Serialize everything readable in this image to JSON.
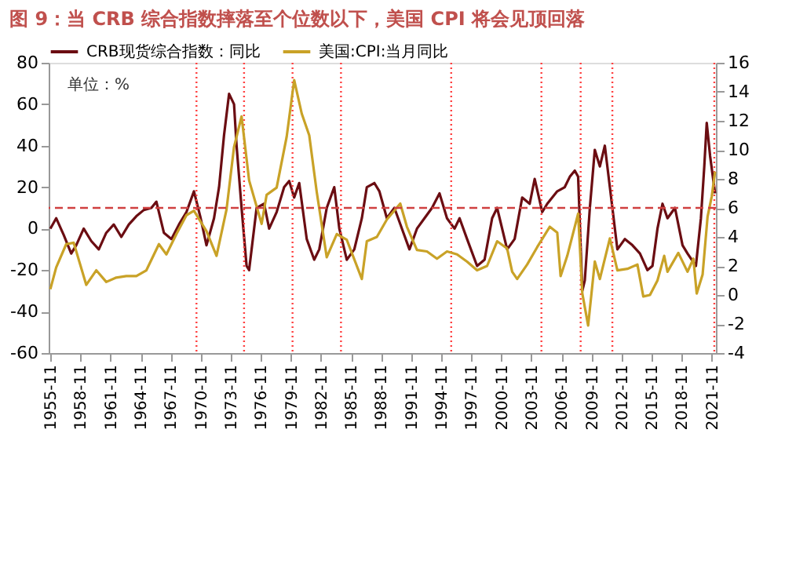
{
  "chart_data": {
    "type": "line",
    "title": "图 9：当 CRB 综合指数摔落至个位数以下，美国 CPI 将会见顶回落",
    "annotations": [
      "单位：%"
    ],
    "series": [
      {
        "name": "CRB现货综合指数：同比",
        "color": "#6b0d12",
        "x": [
          "1955-11",
          "1956-06",
          "1957-03",
          "1957-12",
          "1958-06",
          "1959-03",
          "1959-12",
          "1960-09",
          "1961-06",
          "1962-03",
          "1962-12",
          "1963-09",
          "1964-06",
          "1965-03",
          "1965-12",
          "1966-06",
          "1967-03",
          "1967-12",
          "1968-09",
          "1969-06",
          "1970-03",
          "1970-11",
          "1971-06",
          "1972-03",
          "1972-09",
          "1973-03",
          "1973-09",
          "1974-03",
          "1974-06",
          "1974-12",
          "1975-06",
          "1975-09",
          "1976-06",
          "1977-03",
          "1977-09",
          "1978-06",
          "1979-03",
          "1979-09",
          "1980-03",
          "1980-09",
          "1981-06",
          "1982-03",
          "1982-09",
          "1983-06",
          "1984-03",
          "1984-09",
          "1985-06",
          "1986-03",
          "1986-12",
          "1987-06",
          "1988-03",
          "1988-09",
          "1989-06",
          "1990-03",
          "1990-12",
          "1991-09",
          "1992-06",
          "1993-03",
          "1993-12",
          "1994-09",
          "1995-06",
          "1996-03",
          "1996-09",
          "1997-06",
          "1998-06",
          "1999-03",
          "1999-12",
          "2000-06",
          "2001-06",
          "2002-03",
          "2002-12",
          "2003-09",
          "2004-03",
          "2004-12",
          "2005-06",
          "2006-06",
          "2007-03",
          "2007-09",
          "2008-03",
          "2008-07",
          "2008-12",
          "2009-03",
          "2009-09",
          "2010-03",
          "2010-09",
          "2011-03",
          "2011-09",
          "2012-06",
          "2013-03",
          "2013-12",
          "2014-09",
          "2015-06",
          "2015-12",
          "2016-06",
          "2016-12",
          "2017-06",
          "2018-03",
          "2018-12",
          "2019-06",
          "2020-04",
          "2020-10",
          "2021-02",
          "2021-05",
          "2021-09",
          "2022-03"
        ],
        "values": [
          0,
          5,
          -3,
          -12,
          -8,
          0,
          -6,
          -10,
          -2,
          2,
          -4,
          2,
          6,
          9,
          10,
          13,
          -2,
          -5,
          2,
          8,
          18,
          5,
          -8,
          5,
          20,
          45,
          65,
          60,
          40,
          10,
          -18,
          -20,
          10,
          12,
          0,
          8,
          20,
          23,
          15,
          22,
          -5,
          -15,
          -10,
          10,
          20,
          0,
          -15,
          -10,
          5,
          20,
          22,
          18,
          5,
          10,
          0,
          -10,
          0,
          5,
          10,
          17,
          5,
          0,
          5,
          -5,
          -18,
          -15,
          5,
          10,
          -10,
          -5,
          15,
          12,
          24,
          8,
          12,
          18,
          20,
          25,
          28,
          25,
          -30,
          -25,
          10,
          38,
          30,
          40,
          20,
          -10,
          -5,
          -8,
          -12,
          -20,
          -18,
          0,
          12,
          5,
          10,
          -8,
          -12,
          -18,
          5,
          30,
          51,
          35,
          17
        ]
      },
      {
        "name": "美国:CPI:当月同比",
        "color": "#c9a227",
        "axis": "y2",
        "x": [
          "1955-11",
          "1956-06",
          "1957-06",
          "1958-03",
          "1959-06",
          "1960-06",
          "1961-06",
          "1962-06",
          "1963-06",
          "1964-06",
          "1965-06",
          "1966-09",
          "1967-06",
          "1968-06",
          "1969-06",
          "1970-03",
          "1971-06",
          "1972-06",
          "1973-06",
          "1974-03",
          "1974-12",
          "1975-09",
          "1976-12",
          "1977-06",
          "1978-06",
          "1979-06",
          "1980-03",
          "1980-12",
          "1981-09",
          "1982-06",
          "1983-06",
          "1984-06",
          "1985-06",
          "1986-12",
          "1987-06",
          "1988-06",
          "1989-06",
          "1990-10",
          "1991-06",
          "1992-06",
          "1993-06",
          "1994-06",
          "1995-06",
          "1996-06",
          "1997-06",
          "1998-06",
          "1999-06",
          "2000-06",
          "2001-06",
          "2001-12",
          "2002-06",
          "2003-06",
          "2004-06",
          "2005-09",
          "2006-06",
          "2006-10",
          "2007-06",
          "2008-07",
          "2008-12",
          "2009-07",
          "2010-03",
          "2010-09",
          "2011-09",
          "2012-06",
          "2013-06",
          "2014-06",
          "2015-01",
          "2015-09",
          "2016-06",
          "2017-02",
          "2017-06",
          "2018-07",
          "2019-06",
          "2020-01",
          "2020-05",
          "2020-12",
          "2021-06",
          "2021-11",
          "2022-03"
        ],
        "values": [
          0.4,
          1.9,
          3.5,
          3.6,
          0.7,
          1.7,
          0.9,
          1.2,
          1.3,
          1.3,
          1.7,
          3.5,
          2.8,
          4.2,
          5.5,
          5.8,
          4.4,
          2.7,
          5.9,
          10.2,
          12.3,
          7.9,
          4.9,
          6.9,
          7.4,
          10.9,
          14.8,
          12.5,
          11,
          7.1,
          2.6,
          4.2,
          3.8,
          1.1,
          3.7,
          4,
          5.2,
          6.3,
          4.7,
          3.1,
          3,
          2.5,
          3,
          2.8,
          2.3,
          1.7,
          2,
          3.7,
          3.2,
          1.6,
          1.1,
          2.1,
          3.3,
          4.7,
          4.3,
          1.3,
          2.7,
          5.6,
          0.1,
          -2.1,
          2.3,
          1.1,
          3.9,
          1.7,
          1.8,
          2.1,
          -0.1,
          0,
          1,
          2.7,
          1.6,
          2.9,
          1.6,
          2.5,
          0.1,
          1.4,
          5.4,
          6.8,
          8.5
        ]
      }
    ],
    "xlim": [
      "1955-09",
      "2022-04"
    ],
    "xticks": [
      "1955-11",
      "1958-11",
      "1961-11",
      "1964-11",
      "1967-11",
      "1970-11",
      "1973-11",
      "1976-11",
      "1979-11",
      "1982-11",
      "1985-11",
      "1988-11",
      "1991-11",
      "1994-11",
      "1997-11",
      "2000-11",
      "2003-11",
      "2006-11",
      "2009-11",
      "2012-11",
      "2015-11",
      "2018-11",
      "2021-11"
    ],
    "ylim": [
      -60,
      80
    ],
    "yticks": [
      -60,
      -40,
      -20,
      0,
      20,
      40,
      60,
      80
    ],
    "y2lim": [
      -4,
      16
    ],
    "y2ticks": [
      -4,
      -2,
      0,
      2,
      4,
      6,
      8,
      10,
      12,
      14,
      16
    ],
    "ref_lines": [
      {
        "axis": "x",
        "value": "1970-06",
        "color": "#ff4040",
        "line_style": "dotted"
      },
      {
        "axis": "x",
        "value": "1975-03",
        "color": "#ff4040",
        "line_style": "dotted"
      },
      {
        "axis": "x",
        "value": "1980-01",
        "color": "#ff4040",
        "line_style": "dotted"
      },
      {
        "axis": "x",
        "value": "1984-11",
        "color": "#ff4040",
        "line_style": "dotted"
      },
      {
        "axis": "x",
        "value": "1995-11",
        "color": "#ff4040",
        "line_style": "dotted"
      },
      {
        "axis": "x",
        "value": "2004-11",
        "color": "#ff4040",
        "line_style": "dotted"
      },
      {
        "axis": "x",
        "value": "2008-10",
        "color": "#ff4040",
        "line_style": "dotted"
      },
      {
        "axis": "x",
        "value": "2011-12",
        "color": "#ff4040",
        "line_style": "dotted"
      },
      {
        "axis": "x",
        "value": "2022-02",
        "color": "#ff4040",
        "line_style": "dotted"
      },
      {
        "axis": "y2",
        "value": 6,
        "color": "#d04040",
        "line_style": "dashed"
      }
    ],
    "legend": "top",
    "grid": false,
    "marker": "none",
    "line_style": "solid"
  }
}
